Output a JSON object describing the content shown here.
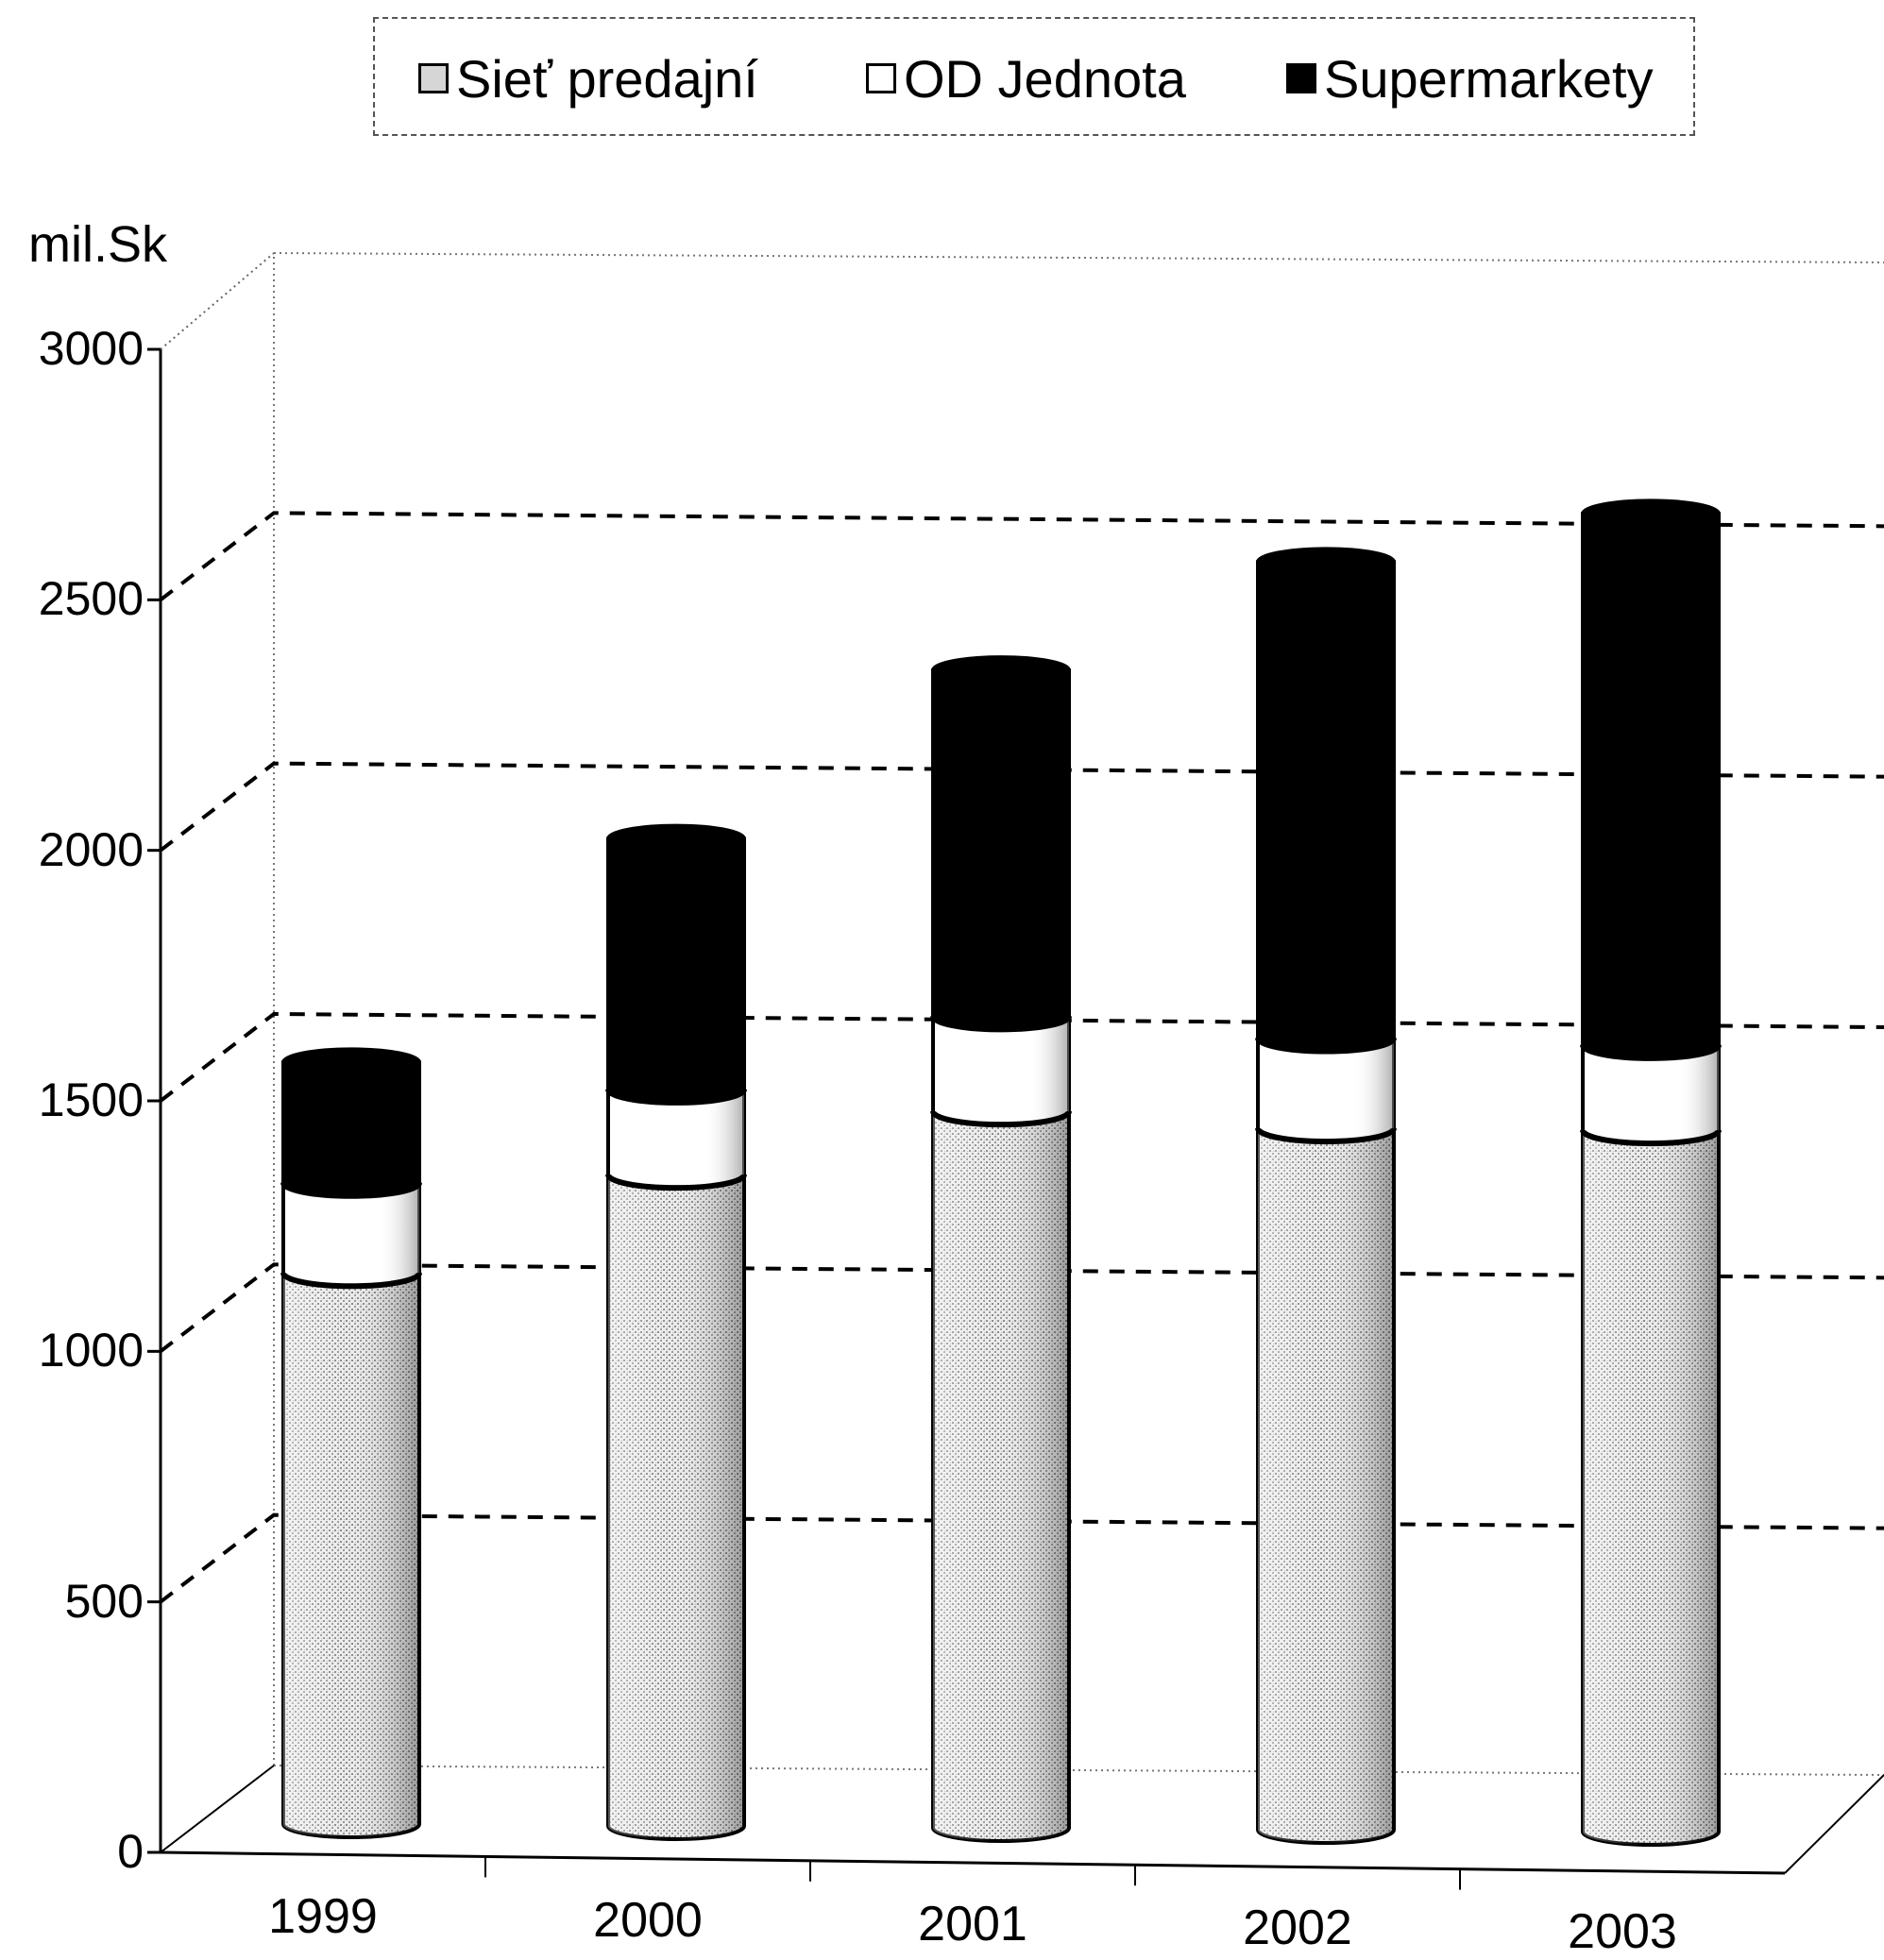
{
  "chart_data": {
    "type": "bar",
    "stacked": true,
    "style": "3d-cylinder",
    "ylabel": "mil.Sk",
    "xlabel": "",
    "ylim": [
      0,
      3000
    ],
    "yticks": [
      "0",
      "500",
      "1000",
      "1500",
      "2000",
      "2500",
      "3000"
    ],
    "categories": [
      "1999",
      "2000",
      "2001",
      "2002",
      "2003"
    ],
    "series": [
      {
        "name": "Sieť  predajní",
        "values": [
          1100,
          1300,
          1430,
          1400,
          1400
        ],
        "color": "#c8c8c8",
        "pattern": "stipple"
      },
      {
        "name": "OD Jednota",
        "values": [
          180,
          170,
          190,
          180,
          170
        ],
        "color": "#ffffff",
        "pattern": "none"
      },
      {
        "name": "Supermarkety",
        "values": [
          240,
          500,
          690,
          950,
          1060
        ],
        "color": "#000000",
        "pattern": "solid"
      }
    ],
    "legend_position": "top",
    "grid": true
  }
}
